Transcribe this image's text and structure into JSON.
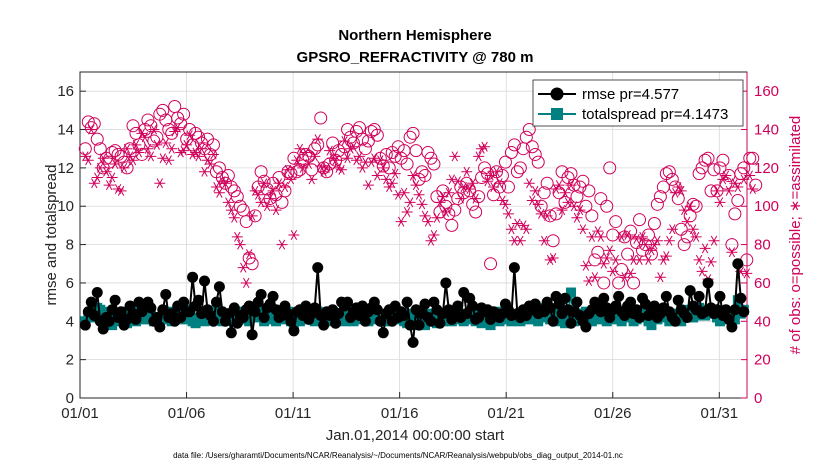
{
  "chart_data": {
    "type": "line",
    "title": "Northern Hemisphere",
    "subtitle": "GPSRO_REFRACTIVITY @ 780 m",
    "xlabel": "Jan.01,2014 00:00:00 start",
    "ylabel": "rmse and totalspread",
    "y2label": "# of obs: o=possible; ∗=assimilated",
    "footer": "data file: /Users/gharamti/Documents/NCAR/Reanalysis/~/Documents/NCAR/Reanalysis/webpub/obs_diag_output_2014-01.nc",
    "xlim": [
      0,
      31.3
    ],
    "ylim": [
      0,
      17
    ],
    "y2lim": [
      0,
      170
    ],
    "xticks": [
      0,
      5,
      10,
      15,
      20,
      25,
      30
    ],
    "xticklabels": [
      "01/01",
      "01/06",
      "01/11",
      "01/16",
      "01/21",
      "01/26",
      "01/31"
    ],
    "yticks": [
      0,
      2,
      4,
      6,
      8,
      10,
      12,
      14,
      16
    ],
    "y2ticks": [
      0,
      20,
      40,
      60,
      80,
      100,
      120,
      140,
      160
    ],
    "grid": true,
    "legend_position": "top-right",
    "colors": {
      "rmse": "#000000",
      "spread": "#008080",
      "obs": "#d0005a"
    },
    "series": [
      {
        "name": "rmse pr=4.577",
        "values": [
          3.8,
          4.5,
          5.0,
          4.3,
          5.5,
          4.0,
          3.6,
          4.2,
          4.0,
          4.6,
          5.1,
          4.2,
          4.5,
          3.8,
          4.1,
          4.8,
          4.4,
          4.1,
          5.0,
          4.5,
          4.8,
          5.0,
          4.7,
          4.0,
          4.2,
          3.7,
          4.6,
          5.4,
          4.2,
          4.4,
          4.0,
          4.8,
          4.2,
          5.0,
          4.5,
          4.5,
          6.3,
          4.8,
          5.1,
          4.4,
          6.1,
          4.6,
          4.3,
          4.0,
          5.0,
          5.8,
          4.5,
          4.0,
          4.4,
          3.4,
          4.7,
          3.9,
          4.3,
          4.2,
          4.6,
          4.8,
          3.3,
          4.5,
          5.0,
          5.4,
          4.2,
          4.7,
          4.9,
          5.3,
          4.6,
          4.2,
          4.3,
          4.8,
          4.4,
          4.0,
          3.5,
          4.5,
          4.6,
          4.3,
          4.8,
          4.1,
          4.4,
          4.7,
          6.8,
          4.3,
          3.8,
          4.5,
          4.3,
          4.6,
          3.9,
          4.4,
          5.0,
          4.8,
          5.0,
          4.2,
          4.5,
          4.7,
          4.3,
          4.8,
          4.0,
          4.5,
          4.7,
          5.0,
          4.6,
          4.0,
          3.4,
          4.4,
          4.6,
          4.0,
          4.8,
          4.2,
          4.5,
          4.3,
          5.0,
          3.8,
          2.9,
          4.6,
          3.8,
          4.4,
          4.9,
          4.2,
          4.0,
          5.0,
          4.6,
          3.9,
          4.4,
          6.0,
          4.6,
          4.1,
          4.4,
          4.8,
          4.2,
          5.5,
          4.4,
          5.2,
          4.8,
          4.1,
          4.2,
          4.7,
          4.5,
          4.6,
          4.1,
          4.5,
          4.4,
          4.2,
          4.4,
          4.9,
          4.6,
          4.3,
          6.8,
          4.4,
          4.2,
          4.6,
          4.3,
          4.8,
          4.6,
          4.9,
          4.4,
          4.6,
          4.5,
          5.0,
          4.7,
          4.0,
          5.3,
          4.9,
          4.4,
          5.2,
          4.6,
          3.9,
          4.5,
          5.0,
          4.3,
          4.0,
          3.7,
          4.4,
          4.6,
          5.0,
          4.8,
          4.5,
          5.2,
          4.7,
          4.2,
          4.6,
          4.8,
          5.3,
          4.5,
          4.3,
          4.8,
          5.0,
          4.4,
          4.6,
          4.2,
          5.2,
          4.9,
          4.3,
          4.5,
          4.8,
          4.2,
          4.4,
          4.7,
          5.3,
          4.5,
          4.2,
          4.0,
          5.1,
          4.6,
          4.4,
          4.2,
          5.6,
          4.8,
          4.6,
          5.3,
          4.4,
          4.5,
          6.0,
          4.7,
          4.4,
          4.6,
          5.3,
          4.3,
          4.6,
          4.1,
          3.7,
          4.6,
          7.0,
          5.2,
          4.5
        ]
      },
      {
        "name": "totalspread pr=4.1473",
        "values": [
          4.0,
          4.3,
          4.4,
          4.2,
          4.7,
          4.6,
          4.1,
          4.5,
          4.1,
          3.8,
          4.3,
          4.2,
          4.0,
          4.5,
          3.9,
          4.2,
          4.5,
          4.0,
          4.4,
          4.3,
          4.1,
          4.6,
          4.4,
          4.0,
          4.2,
          3.8,
          4.1,
          4.4,
          4.5,
          4.0,
          4.2,
          4.5,
          4.3,
          4.1,
          4.2,
          4.6,
          4.0,
          3.9,
          4.2,
          4.5,
          4.0,
          4.3,
          4.1,
          4.2,
          4.6,
          4.4,
          4.0,
          4.2,
          4.4,
          4.1,
          4.0,
          4.5,
          4.2,
          4.3,
          4.1,
          4.0,
          4.4,
          4.2,
          4.3,
          4.5,
          4.0,
          4.1,
          4.6,
          4.2,
          4.0,
          4.2,
          4.4,
          4.1,
          4.5,
          4.0,
          3.8,
          4.3,
          4.0,
          4.2,
          4.4,
          4.1,
          4.3,
          4.0,
          4.5,
          4.2,
          4.3,
          4.1,
          4.0,
          4.5,
          4.2,
          4.3,
          4.1,
          4.0,
          4.5,
          4.4,
          4.0,
          4.2,
          4.1,
          4.3,
          4.6,
          4.0,
          4.2,
          4.7,
          4.1,
          4.4,
          4.0,
          4.3,
          4.0,
          4.5,
          4.2,
          4.1,
          4.3,
          4.0,
          3.9,
          4.4,
          4.1,
          3.8,
          4.3,
          4.0,
          3.8,
          4.2,
          4.4,
          4.1,
          3.9,
          4.3,
          4.0,
          4.2,
          4.5,
          4.0,
          4.1,
          4.2,
          4.4,
          4.0,
          4.1,
          4.3,
          4.6,
          4.0,
          4.2,
          3.9,
          4.3,
          4.1,
          3.8,
          4.2,
          4.5,
          4.0,
          4.1,
          4.4,
          4.2,
          4.0,
          4.3,
          4.1,
          4.0,
          4.5,
          4.4,
          4.1,
          4.2,
          4.6,
          4.0,
          4.2,
          4.7,
          4.3,
          4.1,
          4.6,
          4.0,
          4.4,
          4.2,
          3.9,
          4.3,
          5.5,
          4.0,
          4.2,
          4.4,
          4.1,
          4.5,
          4.3,
          4.0,
          4.2,
          4.6,
          4.1,
          4.3,
          4.0,
          4.2,
          4.5,
          4.1,
          4.4,
          4.0,
          4.2,
          4.6,
          4.3,
          4.0,
          4.1,
          4.4,
          4.2,
          4.5,
          4.0,
          3.8,
          4.3,
          4.1,
          4.2,
          4.5,
          4.3,
          4.0,
          4.1,
          4.4,
          4.2,
          4.0,
          4.6,
          4.3,
          4.5,
          4.2,
          4.3,
          4.7,
          4.5,
          4.3,
          4.6,
          4.4,
          4.5,
          4.2,
          4.0,
          4.1,
          4.4,
          4.3,
          3.9,
          4.1,
          5.1,
          4.4,
          4.6
        ]
      },
      {
        "name": "possible",
        "values": [
          130,
          144,
          141,
          143,
          135,
          130,
          120,
          125,
          123,
          128,
          129,
          127,
          126,
          123,
          120,
          130,
          142,
          138,
          132,
          127,
          140,
          145,
          142,
          134,
          136,
          148,
          150,
          145,
          140,
          138,
          152,
          146,
          143,
          148,
          135,
          140,
          132,
          138,
          136,
          133,
          130,
          135,
          127,
          132,
          118,
          120,
          115,
          112,
          116,
          110,
          108,
          105,
          100,
          98,
          92,
          73,
          70,
          95,
          110,
          118,
          113,
          109,
          104,
          112,
          106,
          115,
          102,
          108,
          118,
          117,
          125,
          118,
          119,
          124,
          127,
          126,
          119,
          130,
          132,
          146,
          120,
          118,
          122,
          133,
          124,
          129,
          127,
          131,
          140,
          136,
          133,
          139,
          141,
          135,
          130,
          134,
          139,
          140,
          137,
          125,
          121,
          127,
          120,
          128,
          126,
          131,
          125,
          129,
          122,
          136,
          138,
          129,
          114,
          118,
          116,
          128,
          125,
          122,
          105,
          97,
          108,
          100,
          96,
          90,
          98,
          104,
          110,
          107,
          112,
          108,
          101,
          97,
          105,
          115,
          120,
          117,
          70,
          106,
          118,
          110,
          116,
          123,
          110,
          128,
          132,
          118,
          120,
          130,
          136,
          140,
          131,
          127,
          123,
          100,
          107,
          112,
          95,
          82,
          96,
          107,
          118,
          102,
          115,
          117,
          111,
          105,
          110,
          113,
          100,
          108,
          95,
          72,
          76,
          104,
          60,
          100,
          120,
          85,
          92,
          60,
          67,
          84,
          75,
          87,
          60,
          81,
          93,
          77,
          80,
          85,
          75,
          91,
          101,
          105,
          110,
          117,
          118,
          114,
          110,
          104,
          88,
          80,
          84,
          95,
          101,
          100,
          117,
          120,
          124,
          125,
          108,
          119,
          108,
          120,
          124,
          112,
          116,
          80,
          96,
          103,
          117,
          120,
          72,
          125,
          125,
          111
        ]
      },
      {
        "name": "assimilated",
        "values": [
          126,
          124,
          140,
          112,
          115,
          120,
          125,
          118,
          111,
          115,
          122,
          109,
          108,
          120,
          130,
          126,
          124,
          132,
          128,
          138,
          136,
          130,
          126,
          140,
          132,
          112,
          125,
          133,
          124,
          130,
          139,
          141,
          128,
          129,
          132,
          137,
          127,
          128,
          126,
          130,
          118,
          124,
          122,
          127,
          110,
          107,
          113,
          112,
          102,
          98,
          94,
          84,
          80,
          68,
          60,
          75,
          95,
          108,
          106,
          102,
          112,
          100,
          104,
          108,
          98,
          112,
          80,
          110,
          119,
          114,
          85,
          124,
          130,
          120,
          128,
          122,
          114,
          126,
          135,
          121,
          118,
          120,
          129,
          125,
          124,
          120,
          119,
          134,
          125,
          130,
          131,
          124,
          126,
          120,
          123,
          111,
          123,
          125,
          116,
          124,
          120,
          114,
          110,
          112,
          117,
          106,
          92,
          107,
          97,
          102,
          116,
          111,
          106,
          101,
          95,
          92,
          82,
          85,
          94,
          102,
          105,
          97,
          107,
          114,
          126,
          113,
          104,
          110,
          118,
          109,
          112,
          104,
          126,
          130,
          131,
          113,
          116,
          110,
          118,
          112,
          103,
          101,
          96,
          88,
          82,
          91,
          82,
          90,
          88,
          112,
          103,
          108,
          101,
          96,
          82,
          95,
          72,
          73,
          109,
          111,
          98,
          107,
          102,
          111,
          100,
          94,
          98,
          88,
          69,
          61,
          84,
          63,
          87,
          84,
          70,
          73,
          77,
          66,
          72,
          53,
          84,
          63,
          85,
          65,
          72,
          83,
          72,
          84,
          80,
          72,
          77,
          80,
          82,
          63,
          72,
          74,
          82,
          88,
          107,
          110,
          108,
          98,
          92,
          100,
          88,
          84,
          72,
          66,
          78,
          62,
          71,
          82,
          108,
          102,
          114,
          116,
          108,
          76,
          112,
          110,
          66,
          114,
          65,
          116,
          109
        ]
      }
    ]
  }
}
